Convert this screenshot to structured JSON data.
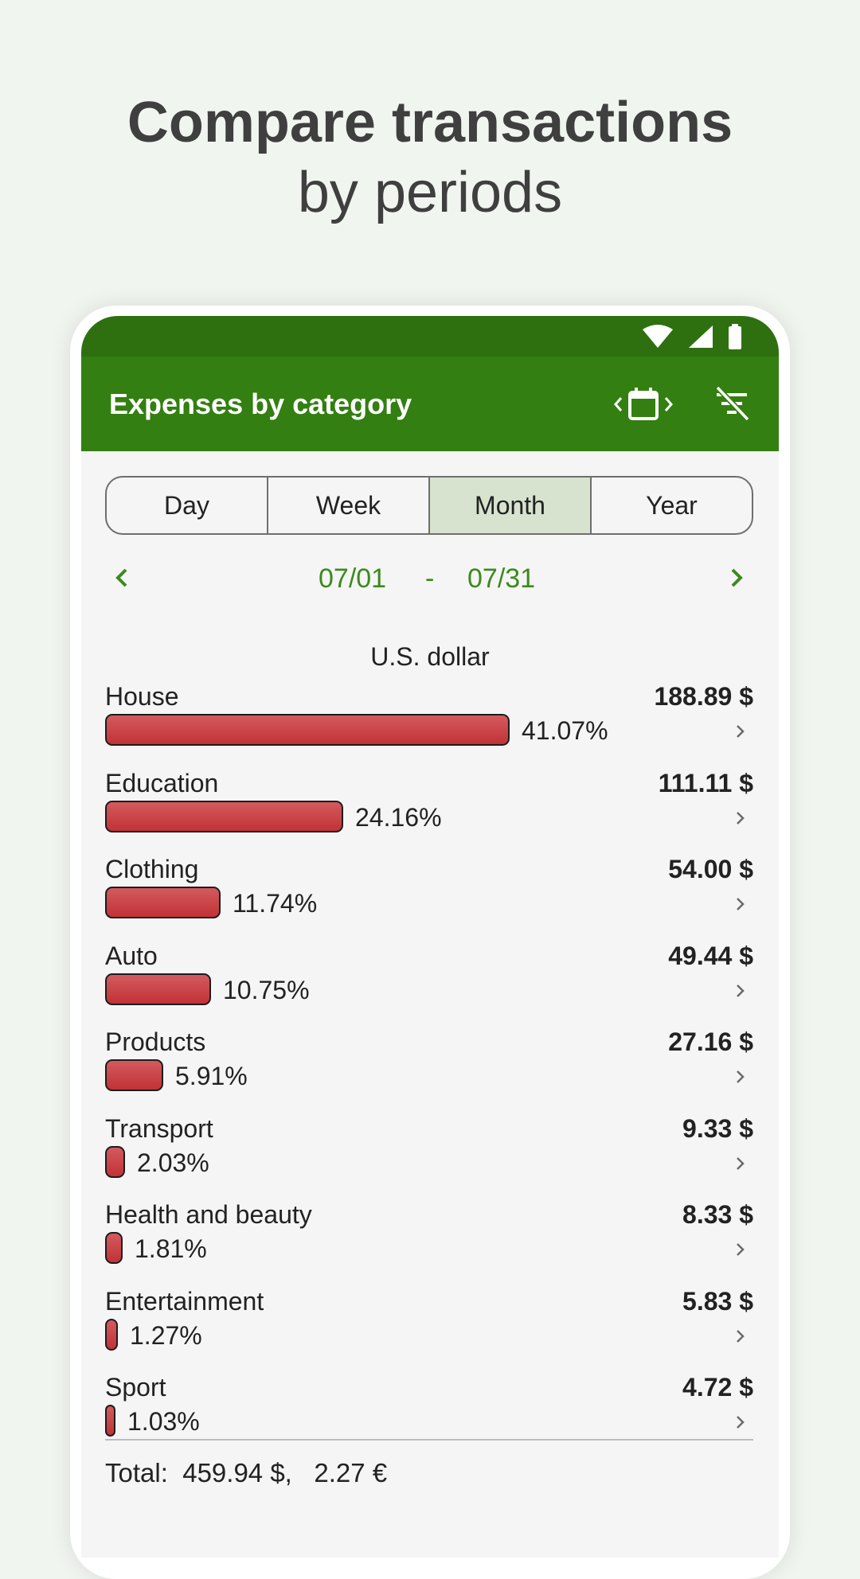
{
  "headline": {
    "line1": "Compare transactions",
    "line2": "by periods"
  },
  "appbar": {
    "title": "Expenses by category",
    "period_icon": "calendar-period-nav-icon",
    "filter_icon": "filter-off-icon"
  },
  "status_icons": [
    "wifi-icon",
    "signal-icon",
    "battery-icon"
  ],
  "segments": [
    "Day",
    "Week",
    "Month",
    "Year"
  ],
  "active_segment": "Month",
  "range": {
    "from": "07/01",
    "sep": "-",
    "to": "07/31"
  },
  "currency": "U.S. dollar",
  "categories": [
    {
      "name": "House",
      "amount": "188.89 $",
      "percent": "41.07%",
      "share": 41.07
    },
    {
      "name": "Education",
      "amount": "111.11 $",
      "percent": "24.16%",
      "share": 24.16
    },
    {
      "name": "Clothing",
      "amount": "54.00 $",
      "percent": "11.74%",
      "share": 11.74
    },
    {
      "name": "Auto",
      "amount": "49.44 $",
      "percent": "10.75%",
      "share": 10.75
    },
    {
      "name": "Products",
      "amount": "27.16 $",
      "percent": "5.91%",
      "share": 5.91
    },
    {
      "name": "Transport",
      "amount": "9.33 $",
      "percent": "2.03%",
      "share": 2.03
    },
    {
      "name": "Health and beauty",
      "amount": "8.33 $",
      "percent": "1.81%",
      "share": 1.81
    },
    {
      "name": "Entertainment",
      "amount": "5.83 $",
      "percent": "1.27%",
      "share": 1.27
    },
    {
      "name": "Sport",
      "amount": "4.72 $",
      "percent": "1.03%",
      "share": 1.03
    }
  ],
  "total": {
    "label": "Total:",
    "usd": "459.94 $,",
    "eur": "2.27 €"
  },
  "colors": {
    "appbar": "#337f11",
    "statusbar": "#2e7010",
    "accent": "#3b8a1d",
    "bar": "#c8393d",
    "active_segment": "#d7e3cf"
  }
}
